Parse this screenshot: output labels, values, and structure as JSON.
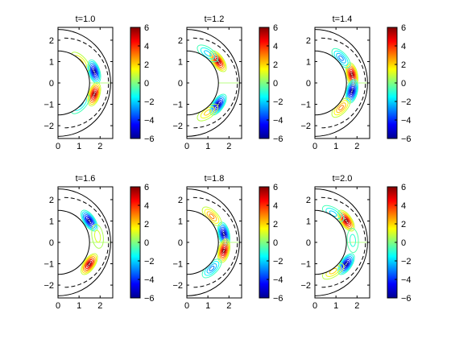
{
  "chart_data": [
    {
      "type": "contour",
      "title": "t=1.0",
      "xticks": [
        0,
        1,
        2
      ],
      "yticks": [
        2,
        1,
        0,
        -1,
        -2
      ],
      "xlim": [
        0,
        2.6
      ],
      "ylim": [
        -2.6,
        2.6
      ],
      "colorbar": {
        "ticks": [
          6,
          4,
          2,
          0,
          -2,
          -4,
          -6
        ],
        "range": [
          -6,
          6
        ]
      },
      "inner_radius": 1.5,
      "outer_radius": 2.5,
      "lobes": [
        {
          "r": 1.8,
          "theta": 0.3,
          "value": -6
        },
        {
          "r": 1.8,
          "theta": -0.3,
          "value": 6
        },
        {
          "r": 1.45,
          "theta": 0.75,
          "value": 2
        },
        {
          "r": 1.45,
          "theta": -0.75,
          "value": -2
        }
      ]
    },
    {
      "type": "contour",
      "title": "t=1.2",
      "xticks": [
        0,
        1,
        2
      ],
      "yticks": [
        2,
        1,
        0,
        -1,
        -2
      ],
      "xlim": [
        0,
        2.6
      ],
      "ylim": [
        -2.6,
        2.6
      ],
      "colorbar": {
        "ticks": [
          6,
          4,
          2,
          0,
          -2,
          -4,
          -6
        ],
        "range": [
          -6,
          6
        ]
      },
      "inner_radius": 1.5,
      "outer_radius": 2.5,
      "lobes": [
        {
          "r": 1.8,
          "theta": 0.6,
          "value": 6
        },
        {
          "r": 1.8,
          "theta": -0.6,
          "value": -6
        },
        {
          "r": 1.7,
          "theta": 0.95,
          "value": -2
        },
        {
          "r": 1.7,
          "theta": -0.95,
          "value": 2
        }
      ]
    },
    {
      "type": "contour",
      "title": "t=1.4",
      "xticks": [
        0,
        1,
        2
      ],
      "yticks": [
        2,
        1,
        0,
        -1,
        -2
      ],
      "xlim": [
        0,
        2.6
      ],
      "ylim": [
        -2.6,
        2.6
      ],
      "colorbar": {
        "ticks": [
          6,
          4,
          2,
          0,
          -2,
          -4,
          -6
        ],
        "range": [
          -6,
          6
        ]
      },
      "inner_radius": 1.5,
      "outer_radius": 2.5,
      "lobes": [
        {
          "r": 1.8,
          "theta": 0.22,
          "value": 6
        },
        {
          "r": 1.8,
          "theta": -0.22,
          "value": -6
        },
        {
          "r": 1.7,
          "theta": 0.75,
          "value": -3
        },
        {
          "r": 1.7,
          "theta": -0.75,
          "value": 3
        }
      ]
    },
    {
      "type": "contour",
      "title": "t=1.6",
      "xticks": [
        0,
        1,
        2
      ],
      "yticks": [
        2,
        1,
        0,
        -1,
        -2
      ],
      "xlim": [
        0,
        2.6
      ],
      "ylim": [
        -2.6,
        2.6
      ],
      "colorbar": {
        "ticks": [
          6,
          4,
          2,
          0,
          -2,
          -4,
          -6
        ],
        "range": [
          -6,
          6
        ]
      },
      "inner_radius": 1.5,
      "outer_radius": 2.5,
      "lobes": [
        {
          "r": 1.8,
          "theta": 0.6,
          "value": -6
        },
        {
          "r": 1.8,
          "theta": -0.6,
          "value": 6
        },
        {
          "r": 1.9,
          "theta": 0.15,
          "value": 1
        }
      ]
    },
    {
      "type": "contour",
      "title": "t=1.8",
      "xticks": [
        0,
        1,
        2
      ],
      "yticks": [
        2,
        1,
        0,
        -1,
        -2
      ],
      "xlim": [
        0,
        2.6
      ],
      "ylim": [
        -2.6,
        2.6
      ],
      "colorbar": {
        "ticks": [
          6,
          4,
          2,
          0,
          -2,
          -4,
          -6
        ],
        "range": [
          -6,
          6
        ]
      },
      "inner_radius": 1.5,
      "outer_radius": 2.5,
      "lobes": [
        {
          "r": 1.8,
          "theta": 0.22,
          "value": -6
        },
        {
          "r": 1.8,
          "theta": -0.22,
          "value": 6
        },
        {
          "r": 1.7,
          "theta": 0.8,
          "value": 3
        },
        {
          "r": 1.7,
          "theta": -0.8,
          "value": -3
        }
      ]
    },
    {
      "type": "contour",
      "title": "t=2.0",
      "xticks": [
        0,
        1,
        2
      ],
      "yticks": [
        2,
        1,
        0,
        -1,
        -2
      ],
      "xlim": [
        0,
        2.6
      ],
      "ylim": [
        -2.6,
        2.6
      ],
      "colorbar": {
        "ticks": [
          6,
          4,
          2,
          0,
          -2,
          -4,
          -6
        ],
        "range": [
          -6,
          6
        ]
      },
      "inner_radius": 1.5,
      "outer_radius": 2.5,
      "lobes": [
        {
          "r": 1.8,
          "theta": 0.6,
          "value": 6
        },
        {
          "r": 1.8,
          "theta": -0.6,
          "value": -6
        },
        {
          "r": 1.6,
          "theta": 1.0,
          "value": -2
        },
        {
          "r": 1.6,
          "theta": -1.0,
          "value": 2
        },
        {
          "r": 1.8,
          "theta": 0.05,
          "value": -1
        }
      ]
    }
  ]
}
